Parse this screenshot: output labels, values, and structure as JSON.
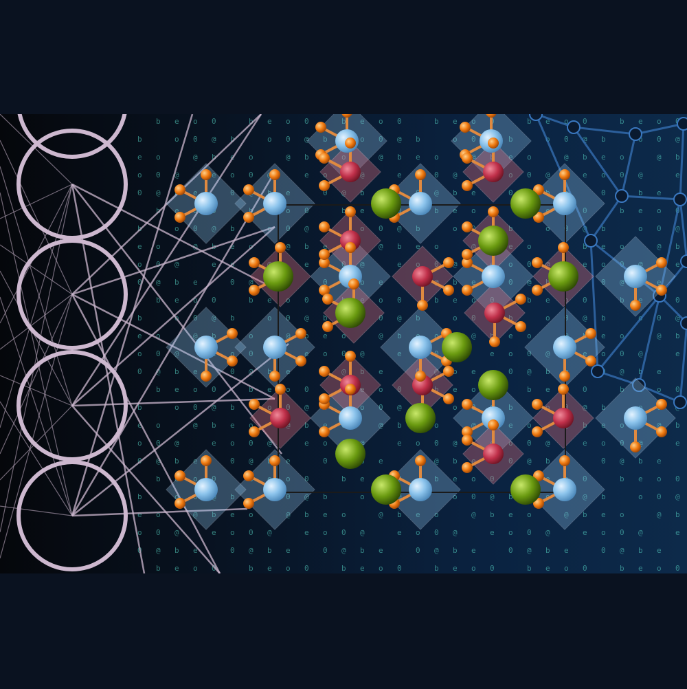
{
  "image": {
    "kind": "scientific-illustration",
    "colors": {
      "background": "#0a1220",
      "panel_left": "#05070b",
      "panel_right": "#0d2a4a",
      "neuron_ring": "#cdb8cf",
      "code_text": "#58d8c8",
      "network_line": "#3a78c0",
      "octa_blue": "#8ec2e8",
      "octa_red": "#d46a7a",
      "atom_blue": "#8cc4ec",
      "atom_red": "#c0304a",
      "atom_orange": "#f07a10",
      "atom_green": "#6a9a10"
    },
    "icons": [
      "neural-network-icon",
      "crystal-lattice-icon",
      "triangulated-network-icon"
    ],
    "counts": {
      "neuron_rings": 5,
      "blue_sites": 20,
      "red_sites": 14,
      "green_atoms": 12
    }
  }
}
